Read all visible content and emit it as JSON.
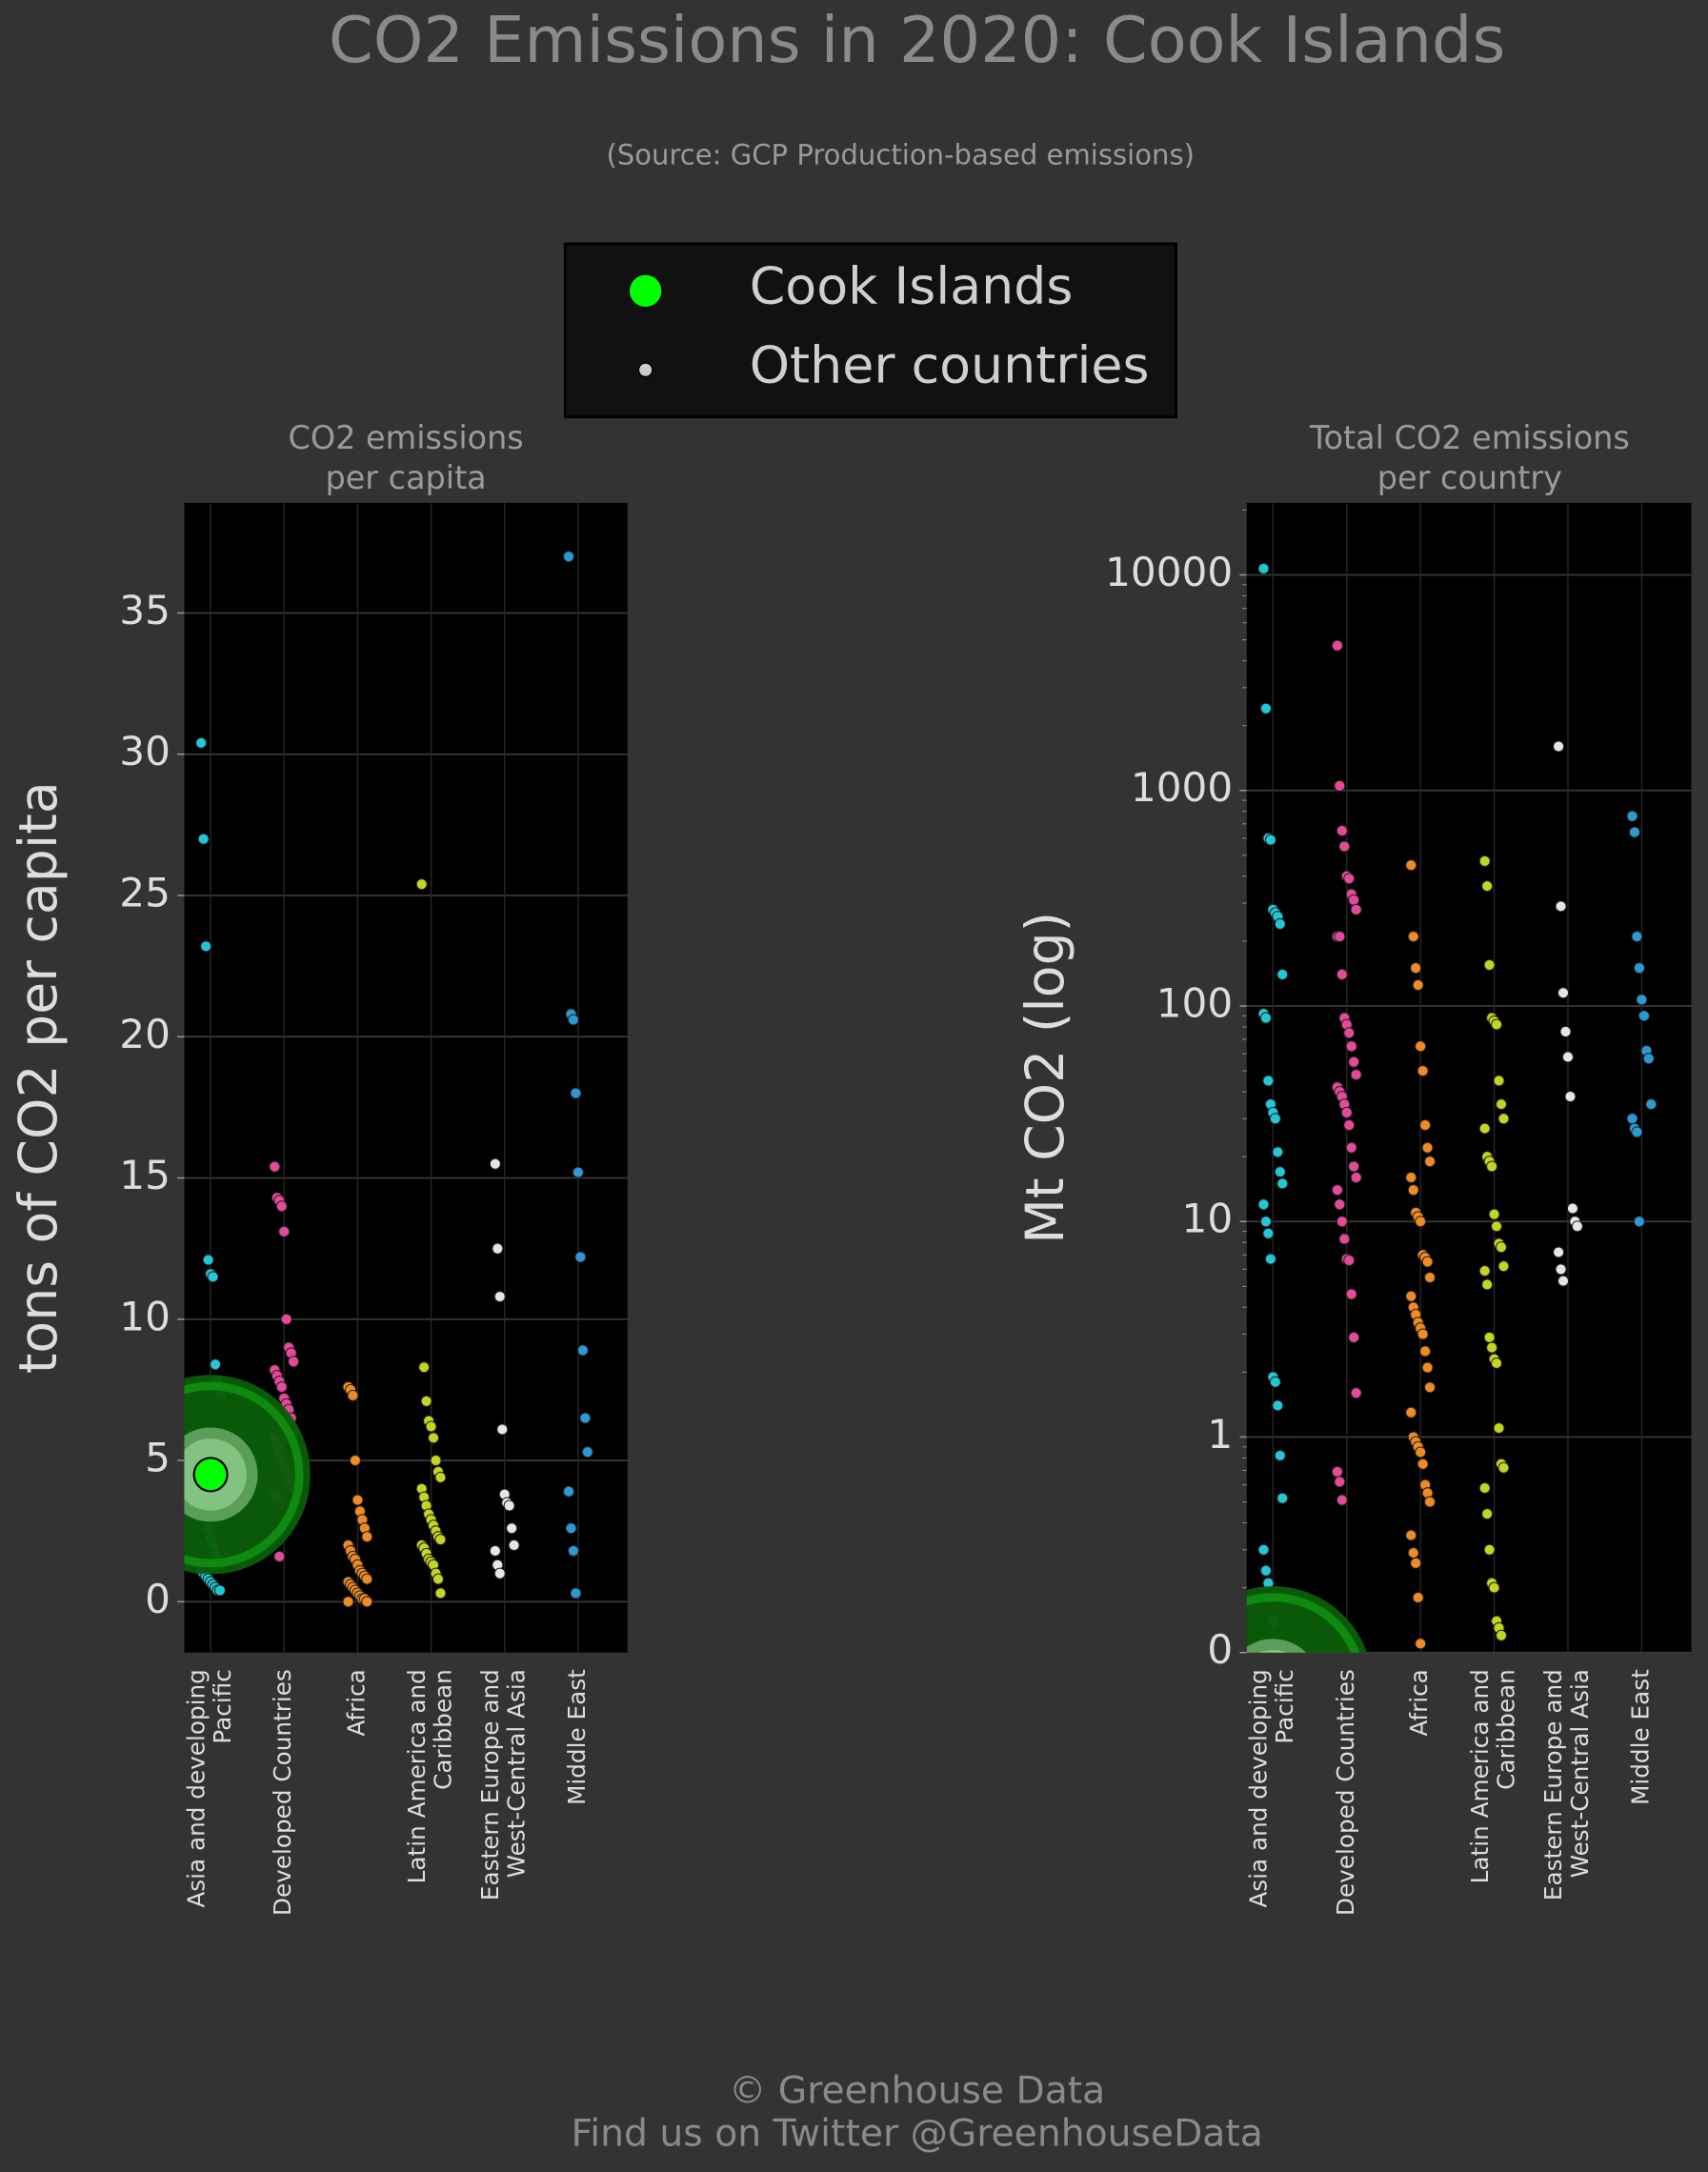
{
  "title": "CO2 Emissions in 2020: Cook Islands",
  "subtitle": "(Source: GCP Production-based emissions)",
  "legend": {
    "entries": [
      {
        "label": "Cook Islands",
        "color": "#00ff00"
      },
      {
        "label": "Other countries",
        "color": "#cccccc"
      }
    ]
  },
  "footer": [
    "© Greenhouse Data",
    "Find us on Twitter @GreenhouseData"
  ],
  "chart_data": [
    {
      "type": "strip",
      "title": "CO2 emissions\nper capita",
      "y_label": "tons of CO2 per capita",
      "log_scale": false,
      "grid": true,
      "categories": [
        "Asia and developing\nPacific",
        "Developed Countries",
        "Africa",
        "Latin America and\nCaribbean",
        "Eastern Europe and\nWest-Central Asia",
        "Middle East"
      ],
      "colors": [
        "#22c7d6",
        "#e6489a",
        "#f08a24",
        "#c3d422",
        "#e6e6e6",
        "#2b9ad4"
      ],
      "values": [
        [
          30.4,
          27,
          23.2,
          12.1,
          11.6,
          11.5,
          8.4,
          7.8,
          7.4,
          3.7,
          3.3,
          3.0,
          2.6,
          2.3,
          2.0,
          1.7,
          1.5,
          1.3,
          1.1,
          1.0,
          0.9,
          0.8,
          0.7,
          0.6,
          0.5,
          0.4,
          0.4
        ],
        [
          15.4,
          14.3,
          14.2,
          14.0,
          13.1,
          10.0,
          9.0,
          8.8,
          8.5,
          8.2,
          8.0,
          7.8,
          7.6,
          7.2,
          7.0,
          6.8,
          6.5,
          6.0,
          5.8,
          5.5,
          5.2,
          5.0,
          4.8,
          4.6,
          4.4,
          4.2,
          4.0,
          3.8,
          3.7,
          1.6
        ],
        [
          7.6,
          7.5,
          7.3,
          5.0,
          3.6,
          3.2,
          2.9,
          2.6,
          2.3,
          2.0,
          1.8,
          1.6,
          1.5,
          1.3,
          1.1,
          1.0,
          0.9,
          0.8,
          0.7,
          0.6,
          0.5,
          0.4,
          0.3,
          0.2,
          0.1,
          0.1,
          0.0,
          0.0
        ],
        [
          25.4,
          8.3,
          7.1,
          6.4,
          6.2,
          5.8,
          5.0,
          4.6,
          4.4,
          4.0,
          3.7,
          3.4,
          3.1,
          2.9,
          2.7,
          2.5,
          2.3,
          2.2,
          2.0,
          1.9,
          1.7,
          1.5,
          1.4,
          1.3,
          1.0,
          0.8,
          0.3
        ],
        [
          15.5,
          12.5,
          10.8,
          6.1,
          3.8,
          3.5,
          3.4,
          2.6,
          2.0,
          1.8,
          1.3,
          1.0
        ],
        [
          37.0,
          20.8,
          20.6,
          18.0,
          15.2,
          12.2,
          8.9,
          6.5,
          5.3,
          3.9,
          2.6,
          1.8,
          0.3
        ]
      ],
      "highlight_values": [
        4.5,
        null,
        null,
        null,
        null,
        null
      ],
      "ylim": [
        -1.8,
        38.9
      ],
      "yticks": [
        0,
        5,
        10,
        15,
        20,
        25,
        30,
        35
      ]
    },
    {
      "type": "strip",
      "title": "Total CO2 emissions\nper country",
      "y_label": "Mt CO2 (log)",
      "log_scale": true,
      "grid": true,
      "categories": [
        "Asia and developing\nPacific",
        "Developed Countries",
        "Africa",
        "Latin America and\nCaribbean",
        "Eastern Europe and\nWest-Central Asia",
        "Middle East"
      ],
      "colors": [
        "#22c7d6",
        "#e6489a",
        "#f08a24",
        "#c3d422",
        "#e6e6e6",
        "#2b9ad4"
      ],
      "values": [
        [
          10700,
          2400,
          600,
          590,
          280,
          270,
          260,
          240,
          140,
          92,
          88,
          45,
          35,
          32,
          30,
          21,
          17,
          15,
          12,
          10,
          8.8,
          6.7,
          1.9,
          1.8,
          1.4,
          0.82,
          0.52,
          0.3,
          0.24,
          0.21,
          0.18,
          0.14
        ],
        [
          4700,
          1050,
          650,
          550,
          400,
          390,
          330,
          310,
          280,
          210,
          210,
          140,
          88,
          82,
          75,
          65,
          55,
          48,
          42,
          40,
          38,
          35,
          32,
          28,
          22,
          18,
          16,
          14,
          12,
          10,
          8.3,
          6.7,
          6.6,
          4.6,
          2.9,
          1.6,
          0.69,
          0.62,
          0.51
        ],
        [
          450,
          210,
          150,
          125,
          65,
          50,
          28,
          22,
          19,
          16,
          14,
          11,
          10.5,
          10,
          7,
          6.8,
          6.5,
          5.5,
          4.5,
          4,
          3.7,
          3.4,
          3.2,
          3,
          2.5,
          2.1,
          1.7,
          1.3,
          1.0,
          0.95,
          0.9,
          0.85,
          0.75,
          0.6,
          0.55,
          0.5,
          0.35,
          0.29,
          0.26,
          0.18,
          0.11
        ],
        [
          470,
          360,
          155,
          88,
          85,
          82,
          45,
          35,
          30,
          27,
          20,
          19,
          18,
          10.8,
          9.5,
          7.9,
          7.6,
          6.2,
          5.9,
          5.1,
          2.9,
          2.6,
          2.3,
          2.2,
          1.1,
          0.75,
          0.72,
          0.58,
          0.44,
          0.3,
          0.21,
          0.2,
          0.14,
          0.13,
          0.12
        ],
        [
          1600,
          290,
          115,
          76,
          58,
          38,
          11.5,
          10,
          9.5,
          7.2,
          6,
          5.3
        ],
        [
          760,
          640,
          210,
          150,
          107,
          90,
          62,
          57,
          35,
          30,
          27,
          26,
          10
        ]
      ],
      "highlight_values": [
        0.07,
        null,
        null,
        null,
        null,
        null
      ],
      "ylim": [
        0.1,
        21600
      ],
      "yticks": [
        {
          "value": 0.1,
          "label": "0"
        },
        1,
        10,
        100,
        1000,
        10000
      ]
    }
  ]
}
